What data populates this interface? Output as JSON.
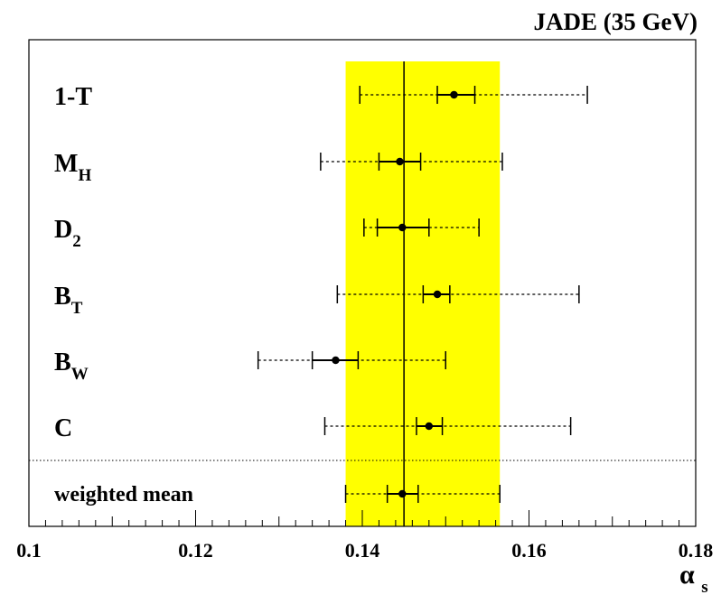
{
  "chart_data": {
    "type": "scatter",
    "title": "JADE (35 GeV)",
    "xlabel": "α",
    "xlabel_sub": "s",
    "xlim": [
      0.1,
      0.18
    ],
    "xticks": [
      "0.1",
      "0.12",
      "0.14",
      "0.16",
      "0.18"
    ],
    "band": {
      "low": 0.138,
      "high": 0.1565,
      "color": "#ffff00"
    },
    "central_value": 0.145,
    "grid": false,
    "legend": "none",
    "points": [
      {
        "label": "1-T",
        "sub": "",
        "value": 0.151,
        "stat": [
          0.149,
          0.1535
        ],
        "total": [
          0.1397,
          0.167
        ]
      },
      {
        "label": "M",
        "sub": "H",
        "value": 0.1445,
        "stat": [
          0.142,
          0.147
        ],
        "total": [
          0.135,
          0.1568
        ]
      },
      {
        "label": "D",
        "sub": "2",
        "value": 0.1448,
        "stat": [
          0.1418,
          0.148
        ],
        "total": [
          0.1402,
          0.154
        ]
      },
      {
        "label": "B",
        "sub": "T",
        "value": 0.149,
        "stat": [
          0.1473,
          0.1505
        ],
        "total": [
          0.137,
          0.166
        ]
      },
      {
        "label": "B",
        "sub": "W",
        "value": 0.1368,
        "stat": [
          0.134,
          0.1395
        ],
        "total": [
          0.1275,
          0.15
        ]
      },
      {
        "label": "C",
        "sub": "",
        "value": 0.148,
        "stat": [
          0.1465,
          0.1496
        ],
        "total": [
          0.1355,
          0.165
        ]
      },
      {
        "label": "weighted mean",
        "sub": "",
        "value": 0.1448,
        "stat": [
          0.143,
          0.1467
        ],
        "total": [
          0.138,
          0.1565
        ]
      }
    ]
  }
}
